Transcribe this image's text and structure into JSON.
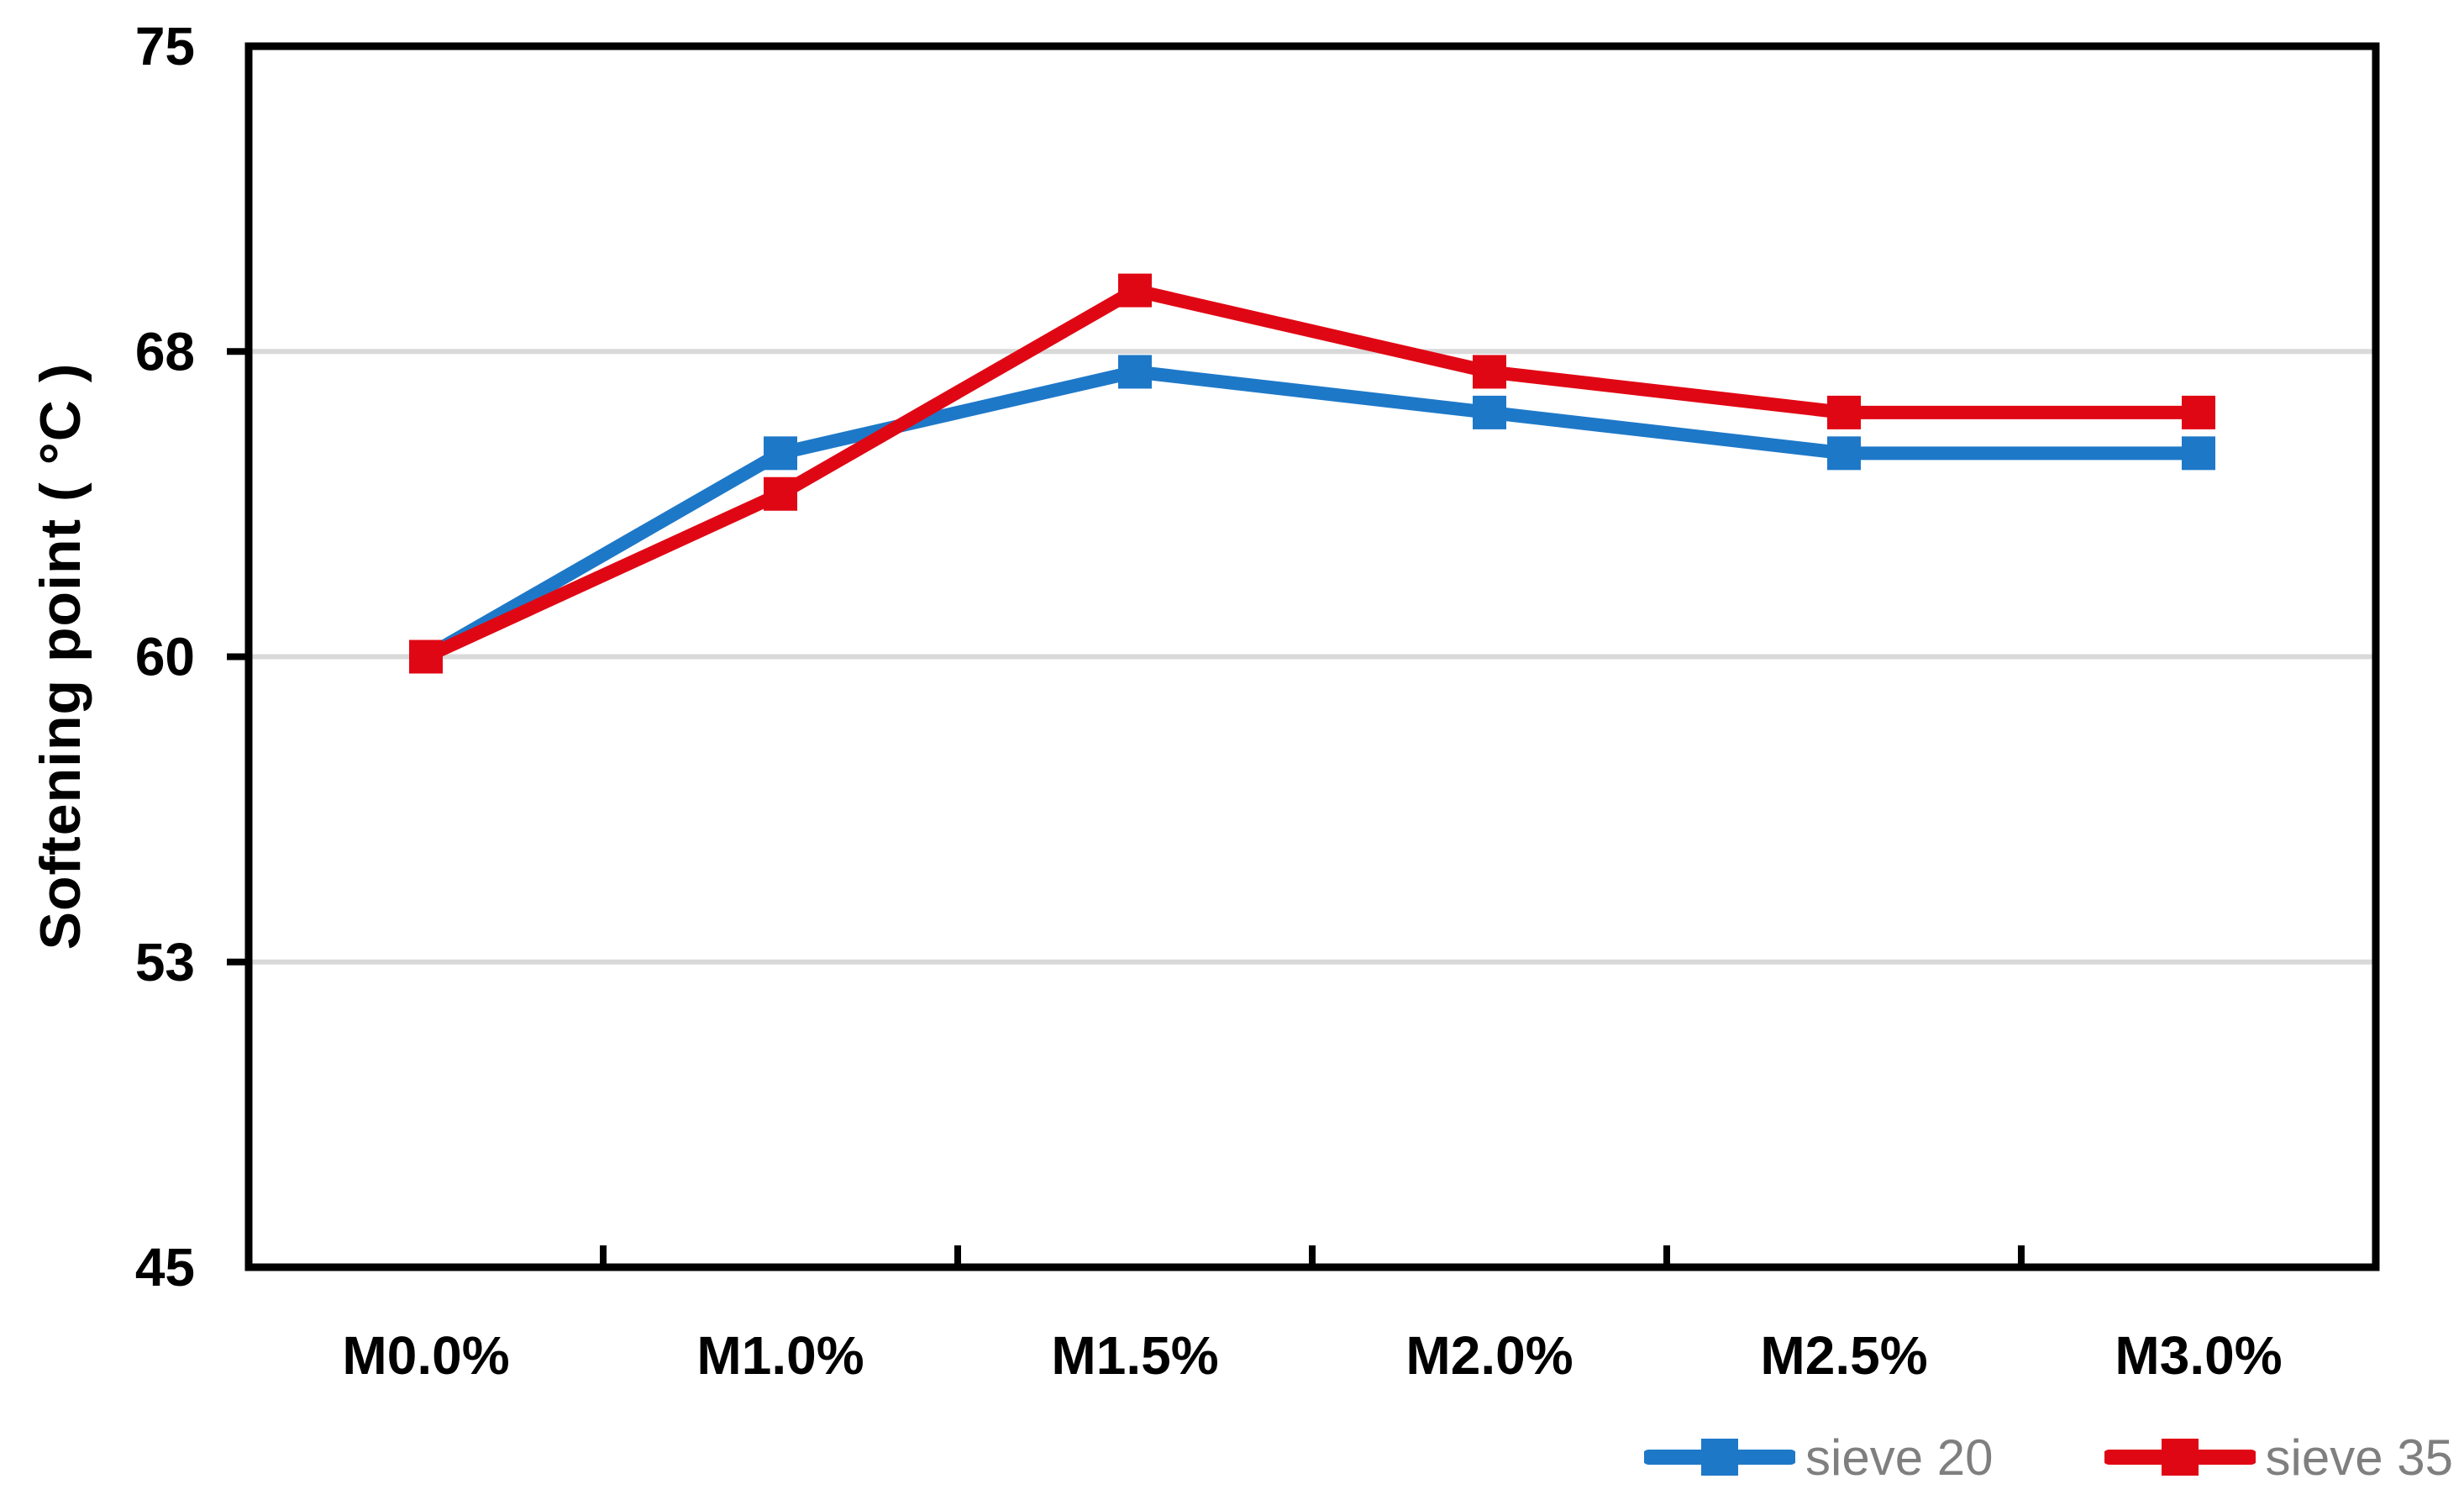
{
  "chart_data": {
    "type": "line",
    "ylabel": "Softening point ( °C )",
    "xlabel": "",
    "categories": [
      "M0.0%",
      "M1.0%",
      "M1.5%",
      "M2.0%",
      "M2.5%",
      "M3.0%"
    ],
    "series": [
      {
        "name": "sieve 20",
        "color": "#1E78C8",
        "marker": "square",
        "values": [
          60,
          65,
          67,
          66,
          65,
          65
        ]
      },
      {
        "name": "sieve 35",
        "color": "#E00714",
        "marker": "square",
        "values": [
          60,
          64,
          69,
          67,
          66,
          66
        ]
      }
    ],
    "y_axis": {
      "min": 45,
      "max": 75,
      "ticks": [
        {
          "value": 45,
          "label": "45"
        },
        {
          "value": 52.5,
          "label": "53"
        },
        {
          "value": 60,
          "label": "60"
        },
        {
          "value": 67.5,
          "label": "68"
        },
        {
          "value": 75,
          "label": "75"
        }
      ]
    },
    "grid": "horizontal",
    "legend_position": "bottom-right",
    "colors": {
      "background": "#FFFFFF",
      "gridline": "#D9D9D9",
      "axis": "#000000",
      "tick_label": "#000000",
      "legend_text": "#7F7F7F"
    }
  }
}
